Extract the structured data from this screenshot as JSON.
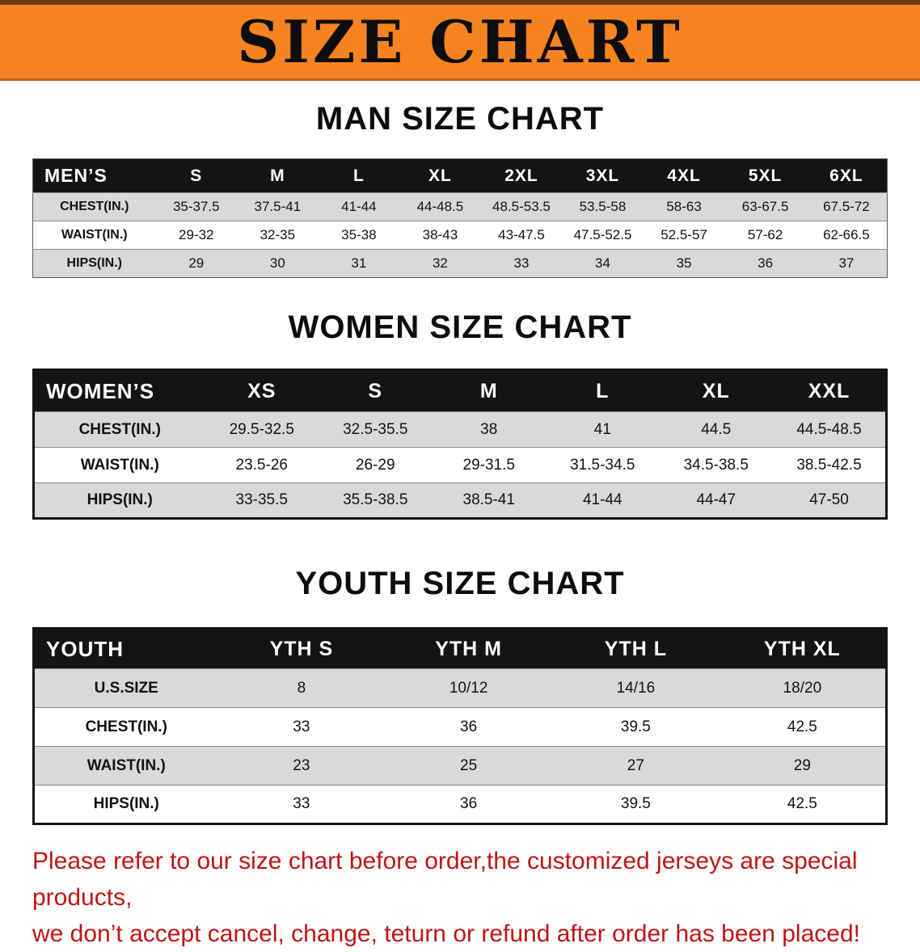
{
  "banner": {
    "title": "SIZE CHART"
  },
  "theme": {
    "banner_bg": "#f5831f",
    "banner_text": "#0d0d0d",
    "table_header_bg": "#141414",
    "table_header_text": "#ffffff",
    "row_alt_bg": "#d9d9d9",
    "disclaimer_text": "#c01515"
  },
  "sections": [
    {
      "id": "men",
      "heading": "MAN SIZE CHART",
      "table": {
        "header": [
          "MEN’S",
          "S",
          "M",
          "L",
          "XL",
          "2XL",
          "3XL",
          "4XL",
          "5XL",
          "6XL"
        ],
        "rows": [
          [
            "CHEST(IN.)",
            "35-37.5",
            "37.5-41",
            "41-44",
            "44-48.5",
            "48.5-53.5",
            "53.5-58",
            "58-63",
            "63-67.5",
            "67.5-72"
          ],
          [
            "WAIST(IN.)",
            "29-32",
            "32-35",
            "35-38",
            "38-43",
            "43-47.5",
            "47.5-52.5",
            "52.5-57",
            "57-62",
            "62-66.5"
          ],
          [
            "HIPS(IN.)",
            "29",
            "30",
            "31",
            "32",
            "33",
            "34",
            "35",
            "36",
            "37"
          ]
        ]
      }
    },
    {
      "id": "women",
      "heading": "WOMEN SIZE CHART",
      "table": {
        "header": [
          "WOMEN’S",
          "XS",
          "S",
          "M",
          "L",
          "XL",
          "XXL"
        ],
        "rows": [
          [
            "CHEST(IN.)",
            "29.5-32.5",
            "32.5-35.5",
            "38",
            "41",
            "44.5",
            "44.5-48.5"
          ],
          [
            "WAIST(IN.)",
            "23.5-26",
            "26-29",
            "29-31.5",
            "31.5-34.5",
            "34.5-38.5",
            "38.5-42.5"
          ],
          [
            "HIPS(IN.)",
            "33-35.5",
            "35.5-38.5",
            "38.5-41",
            "41-44",
            "44-47",
            "47-50"
          ]
        ]
      }
    },
    {
      "id": "youth",
      "heading": "YOUTH SIZE CHART",
      "table": {
        "header": [
          "YOUTH",
          "YTH S",
          "YTH M",
          "YTH L",
          "YTH XL"
        ],
        "rows": [
          [
            "U.S.SIZE",
            "8",
            "10/12",
            "14/16",
            "18/20"
          ],
          [
            "CHEST(IN.)",
            "33",
            "36",
            "39.5",
            "42.5"
          ],
          [
            "WAIST(IN.)",
            "23",
            "25",
            "27",
            "29"
          ],
          [
            "HIPS(IN.)",
            "33",
            "36",
            "39.5",
            "42.5"
          ]
        ]
      }
    }
  ],
  "disclaimer": {
    "lines": [
      "Please refer to our size chart before order,the customized jerseys are special products,",
      "we don’t accept cancel, change, teturn or refund after order has been placed!"
    ]
  }
}
